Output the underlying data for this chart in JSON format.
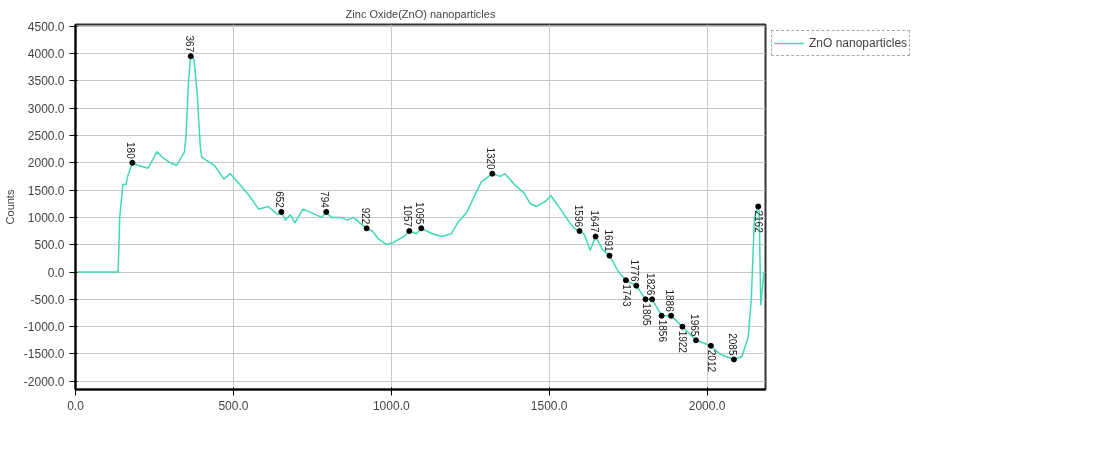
{
  "chart_data": {
    "type": "line",
    "title": "Zinc Oxide(ZnO) nanoparticles",
    "ylabel": "Counts",
    "x": [
      0,
      100,
      135,
      140,
      150,
      160,
      165,
      180,
      200,
      230,
      258,
      275,
      300,
      320,
      345,
      350,
      358,
      365,
      375,
      385,
      395,
      400,
      440,
      470,
      490,
      520,
      550,
      580,
      610,
      640,
      652,
      665,
      680,
      695,
      720,
      760,
      780,
      794,
      810,
      840,
      860,
      880,
      900,
      922,
      940,
      960,
      985,
      1010,
      1040,
      1057,
      1080,
      1095,
      1130,
      1160,
      1190,
      1210,
      1240,
      1260,
      1285,
      1320,
      1345,
      1360,
      1390,
      1420,
      1440,
      1460,
      1490,
      1505,
      1530,
      1565,
      1580,
      1596,
      1610,
      1630,
      1647,
      1670,
      1691,
      1720,
      1743,
      1776,
      1805,
      1826,
      1856,
      1886,
      1922,
      1965,
      2012,
      2040,
      2085,
      2110,
      2130,
      2140,
      2150,
      2162,
      2165,
      2170,
      2180
    ],
    "series": [
      {
        "name": "ZnO nanoparticles",
        "color": "#40d9b8",
        "values": [
          0,
          0,
          0,
          1000,
          1600,
          1600,
          1750,
          2000,
          1950,
          1900,
          2200,
          2100,
          2000,
          1950,
          2200,
          2500,
          3500,
          3950,
          3900,
          3300,
          2300,
          2100,
          1950,
          1700,
          1800,
          1600,
          1400,
          1150,
          1200,
          1050,
          1100,
          950,
          1050,
          900,
          1150,
          1050,
          1000,
          1100,
          1000,
          1000,
          950,
          1000,
          900,
          800,
          750,
          600,
          500,
          550,
          650,
          750,
          700,
          800,
          700,
          650,
          700,
          900,
          1100,
          1350,
          1650,
          1800,
          1750,
          1800,
          1600,
          1450,
          1250,
          1200,
          1300,
          1400,
          1200,
          900,
          800,
          750,
          700,
          400,
          650,
          400,
          300,
          0,
          -150,
          -250,
          -500,
          -500,
          -800,
          -800,
          -1000,
          -1250,
          -1350,
          -1500,
          -1600,
          -1550,
          -1200,
          -500,
          1000,
          1200,
          1100,
          -600,
          0
        ]
      }
    ],
    "xlim": [
      0,
      2185
    ],
    "ylim": [
      -2150,
      4530
    ],
    "xticks": [
      {
        "value": 0,
        "label": "0.0"
      },
      {
        "value": 500,
        "label": "500.0"
      },
      {
        "value": 1000,
        "label": "1000.0"
      },
      {
        "value": 1500,
        "label": "1500.0"
      },
      {
        "value": 2000,
        "label": "2000.0"
      }
    ],
    "yticks": [
      {
        "value": -2000,
        "label": "-2000.0"
      },
      {
        "value": -1500,
        "label": "-1500.0"
      },
      {
        "value": -1000,
        "label": "-1000.0"
      },
      {
        "value": -500,
        "label": "-500.0"
      },
      {
        "value": 0,
        "label": "0.0"
      },
      {
        "value": 500,
        "label": "500.0"
      },
      {
        "value": 1000,
        "label": "1000.0"
      },
      {
        "value": 1500,
        "label": "1500.0"
      },
      {
        "value": 2000,
        "label": "2000.0"
      },
      {
        "value": 2500,
        "label": "2500.0"
      },
      {
        "value": 3000,
        "label": "3000.0"
      },
      {
        "value": 3500,
        "label": "3500.0"
      },
      {
        "value": 4000,
        "label": "4000.0"
      },
      {
        "value": 4500,
        "label": "4500.0"
      }
    ],
    "grid": true,
    "legend": "top right",
    "marker": "none",
    "line_style": "solid",
    "annotations": [
      {
        "text": "180",
        "x": 180,
        "y": 2000
      },
      {
        "text": "367",
        "x": 365,
        "y": 3950
      },
      {
        "text": "652",
        "x": 652,
        "y": 1100
      },
      {
        "text": "794",
        "x": 794,
        "y": 1100
      },
      {
        "text": "922",
        "x": 922,
        "y": 800
      },
      {
        "text": "1057",
        "x": 1057,
        "y": 750
      },
      {
        "text": "1095",
        "x": 1095,
        "y": 800
      },
      {
        "text": "1320",
        "x": 1320,
        "y": 1800
      },
      {
        "text": "1596",
        "x": 1596,
        "y": 750
      },
      {
        "text": "1647",
        "x": 1647,
        "y": 650
      },
      {
        "text": "1691",
        "x": 1691,
        "y": 300
      },
      {
        "text": "1743",
        "x": 1743,
        "y": -150
      },
      {
        "text": "1776",
        "x": 1776,
        "y": -250
      },
      {
        "text": "1805",
        "x": 1805,
        "y": -500
      },
      {
        "text": "1826",
        "x": 1826,
        "y": -500
      },
      {
        "text": "1856",
        "x": 1856,
        "y": -800
      },
      {
        "text": "1886",
        "x": 1886,
        "y": -800
      },
      {
        "text": "1922",
        "x": 1922,
        "y": -1000
      },
      {
        "text": "1965",
        "x": 1965,
        "y": -1250
      },
      {
        "text": "2012",
        "x": 2012,
        "y": -1350
      },
      {
        "text": "2085",
        "x": 2085,
        "y": -1600
      },
      {
        "text": "2162",
        "x": 2162,
        "y": 1200
      }
    ]
  }
}
